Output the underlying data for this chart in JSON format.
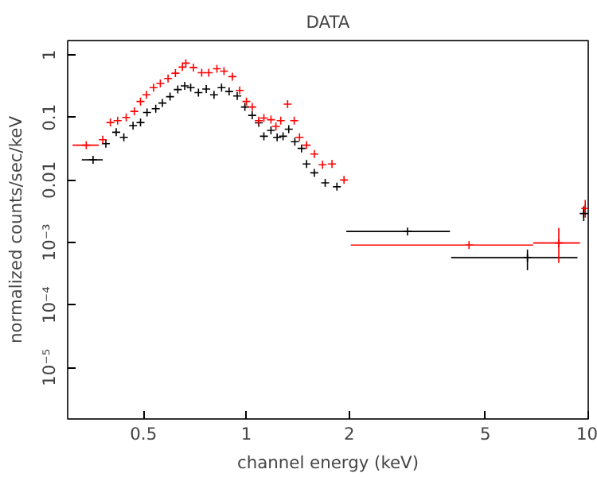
{
  "chart_data": {
    "type": "scatter",
    "title": "DATA",
    "xlabel": "channel energy (keV)",
    "ylabel": "normalized counts/sec/keV",
    "log": "xy",
    "grid": false,
    "marker": "cross",
    "xlim": [
      0.3,
      10
    ],
    "ylim": [
      1.5e-06,
      1.7
    ],
    "xticks": [
      0.5,
      1,
      2,
      5,
      10
    ],
    "yticks": [
      {
        "value": 1e-05,
        "label": "10⁻⁵"
      },
      {
        "value": 0.0001,
        "label": "10⁻⁴"
      },
      {
        "value": 0.001,
        "label": "10⁻³"
      },
      0.01,
      0.1,
      1
    ],
    "series": [
      {
        "color": "#000000",
        "x": [
          0.356,
          0.388,
          0.416,
          0.438,
          0.466,
          0.49,
          0.512,
          0.543,
          0.568,
          0.598,
          0.63,
          0.66,
          0.687,
          0.724,
          0.763,
          0.804,
          0.846,
          0.89,
          0.94,
          0.99,
          1.04,
          1.087,
          1.125,
          1.18,
          1.23,
          1.28,
          1.33,
          1.386,
          1.45,
          1.5,
          1.58,
          1.7,
          1.84,
          2.96,
          6.64,
          9.7
        ],
        "values": [
          0.021,
          0.038,
          0.058,
          0.048,
          0.074,
          0.083,
          0.12,
          0.138,
          0.17,
          0.215,
          0.28,
          0.32,
          0.3,
          0.25,
          0.285,
          0.23,
          0.3,
          0.26,
          0.22,
          0.147,
          0.108,
          0.082,
          0.05,
          0.062,
          0.048,
          0.05,
          0.065,
          0.041,
          0.032,
          0.018,
          0.013,
          0.009,
          0.0078,
          0.0015,
          0.00057,
          0.0029
        ],
        "xerrors": [
          [
            0.33,
            0.38
          ],
          null,
          null,
          null,
          null,
          null,
          null,
          null,
          null,
          null,
          null,
          null,
          null,
          null,
          null,
          null,
          null,
          null,
          null,
          null,
          null,
          null,
          null,
          null,
          null,
          null,
          null,
          null,
          null,
          null,
          null,
          null,
          null,
          [
            1.96,
            3.94
          ],
          [
            3.97,
            9.3
          ],
          null
        ],
        "errors": [
          null,
          null,
          null,
          null,
          null,
          null,
          null,
          null,
          null,
          null,
          null,
          null,
          null,
          null,
          null,
          null,
          null,
          null,
          null,
          null,
          null,
          null,
          null,
          null,
          null,
          null,
          null,
          null,
          null,
          null,
          null,
          null,
          null,
          null,
          [
            0.00036,
            0.00077
          ],
          [
            0.0022,
            0.0038
          ]
        ]
      },
      {
        "color": "#ff0000",
        "x": [
          0.34,
          0.38,
          0.4,
          0.42,
          0.445,
          0.47,
          0.49,
          0.51,
          0.535,
          0.56,
          0.59,
          0.62,
          0.65,
          0.665,
          0.7,
          0.74,
          0.776,
          0.82,
          0.86,
          0.91,
          0.956,
          1.0,
          1.04,
          1.087,
          1.125,
          1.18,
          1.22,
          1.26,
          1.32,
          1.38,
          1.43,
          1.5,
          1.58,
          1.67,
          1.78,
          1.93,
          4.48,
          8.2,
          9.8
        ],
        "values": [
          0.036,
          0.044,
          0.083,
          0.089,
          0.1,
          0.125,
          0.18,
          0.23,
          0.3,
          0.35,
          0.42,
          0.51,
          0.64,
          0.74,
          0.63,
          0.52,
          0.52,
          0.6,
          0.55,
          0.45,
          0.27,
          0.18,
          0.147,
          0.089,
          0.098,
          0.092,
          0.072,
          0.089,
          0.163,
          0.089,
          0.048,
          0.036,
          0.026,
          0.0175,
          0.018,
          0.01,
          0.00091,
          0.00098,
          0.0035
        ],
        "xerrors": [
          [
            0.31,
            0.37
          ],
          null,
          null,
          null,
          null,
          null,
          null,
          null,
          null,
          null,
          null,
          null,
          null,
          null,
          null,
          null,
          null,
          null,
          null,
          null,
          null,
          null,
          null,
          null,
          null,
          null,
          null,
          null,
          null,
          null,
          null,
          null,
          null,
          null,
          null,
          null,
          [
            2.02,
            6.9
          ],
          [
            6.9,
            9.46
          ],
          null
        ],
        "errors": [
          null,
          null,
          null,
          null,
          null,
          null,
          null,
          null,
          null,
          null,
          null,
          null,
          null,
          null,
          null,
          null,
          null,
          null,
          null,
          null,
          null,
          null,
          null,
          null,
          null,
          null,
          null,
          null,
          null,
          null,
          null,
          null,
          null,
          null,
          null,
          null,
          null,
          [
            0.00047,
            0.0017
          ],
          [
            0.0025,
            0.0048
          ]
        ]
      }
    ]
  }
}
